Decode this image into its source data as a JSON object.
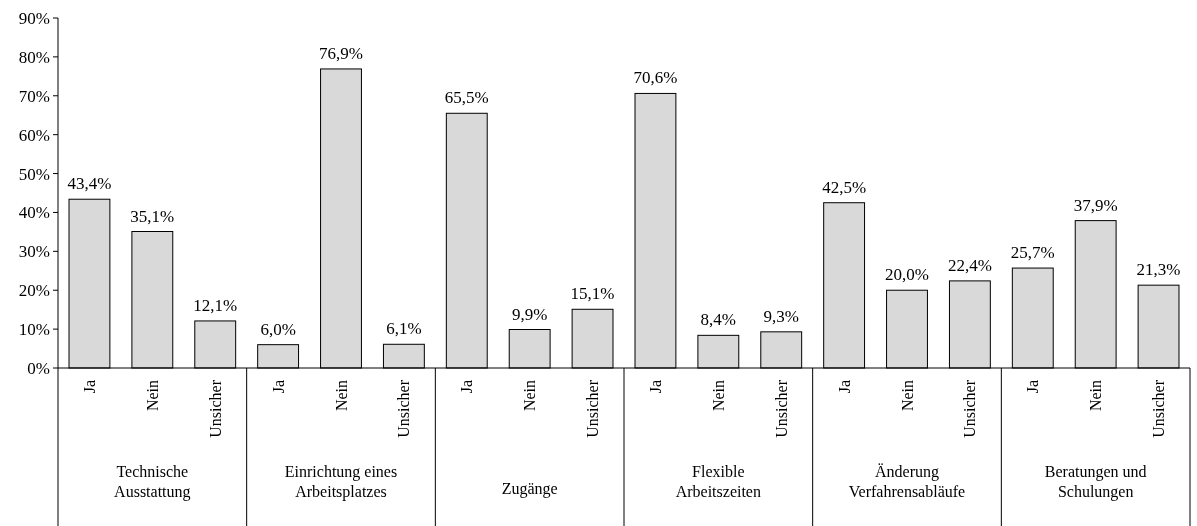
{
  "chart_data": {
    "type": "bar",
    "categories": [
      "Ja",
      "Nein",
      "Unsicher",
      "Ja",
      "Nein",
      "Unsicher",
      "Ja",
      "Nein",
      "Unsicher",
      "Ja",
      "Nein",
      "Unsicher",
      "Ja",
      "Nein",
      "Unsicher",
      "Ja",
      "Nein",
      "Unsicher"
    ],
    "values": [
      43.4,
      35.1,
      12.1,
      6.0,
      76.9,
      6.1,
      65.5,
      9.9,
      15.1,
      70.6,
      8.4,
      9.3,
      42.5,
      20.0,
      22.4,
      25.7,
      37.9,
      21.3
    ],
    "value_labels": [
      "43,4%",
      "35,1%",
      "12,1%",
      "6,0%",
      "76,9%",
      "6,1%",
      "65,5%",
      "9,9%",
      "15,1%",
      "70,6%",
      "8,4%",
      "9,3%",
      "42,5%",
      "20,0%",
      "22,4%",
      "25,7%",
      "37,9%",
      "21,3%"
    ],
    "color": "#d9d9d9",
    "ylim": [
      0,
      90
    ],
    "yticks": [
      {
        "value": 0,
        "label": "0%"
      },
      {
        "value": 10,
        "label": "10%"
      },
      {
        "value": 20,
        "label": "20%"
      },
      {
        "value": 30,
        "label": "30%"
      },
      {
        "value": 40,
        "label": "40%"
      },
      {
        "value": 50,
        "label": "50%"
      },
      {
        "value": 60,
        "label": "60%"
      },
      {
        "value": 70,
        "label": "70%"
      },
      {
        "value": 80,
        "label": "80%"
      },
      {
        "value": 90,
        "label": "90%"
      }
    ],
    "annotations": [
      "Technische Ausstattung",
      "Einrichtung eines Arbeitsplatzes",
      "Zugänge",
      "Flexible Arbeitszeiten",
      "Änderung Verfahrensabläufe",
      "Beratungen und Schulungen"
    ]
  }
}
